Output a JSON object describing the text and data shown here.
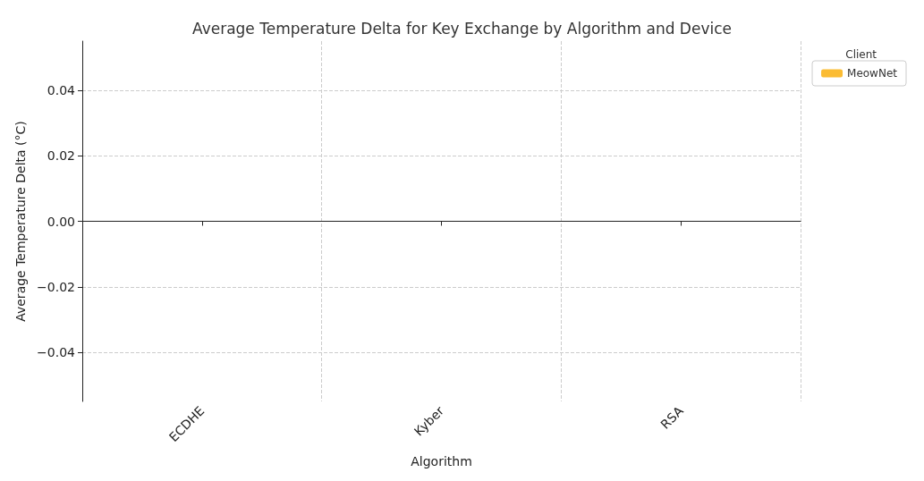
{
  "chart_data": {
    "type": "bar",
    "title": "Average Temperature Delta for Key Exchange by Algorithm and Device",
    "xlabel": "Algorithm",
    "ylabel": "Average Temperature Delta (°C)",
    "legend_title": "Client",
    "categories": [
      "ECDHE",
      "Kyber",
      "RSA"
    ],
    "series": [
      {
        "name": "MeowNet",
        "color": "#fbbc33",
        "values": [
          0,
          0,
          0
        ]
      },
      {
        "color": "#f58a4b",
        "values": [
          0,
          0,
          0
        ]
      }
    ],
    "ylim": [
      -0.055,
      0.055
    ],
    "yticks": [
      {
        "value": -0.04,
        "label": "−0.04"
      },
      {
        "value": -0.02,
        "label": "−0.02"
      },
      {
        "value": 0,
        "label": "0.00"
      },
      {
        "value": 0.02,
        "label": "0.02"
      },
      {
        "value": 0.04,
        "label": "0.04"
      }
    ],
    "grid": true,
    "legend": "top right"
  }
}
